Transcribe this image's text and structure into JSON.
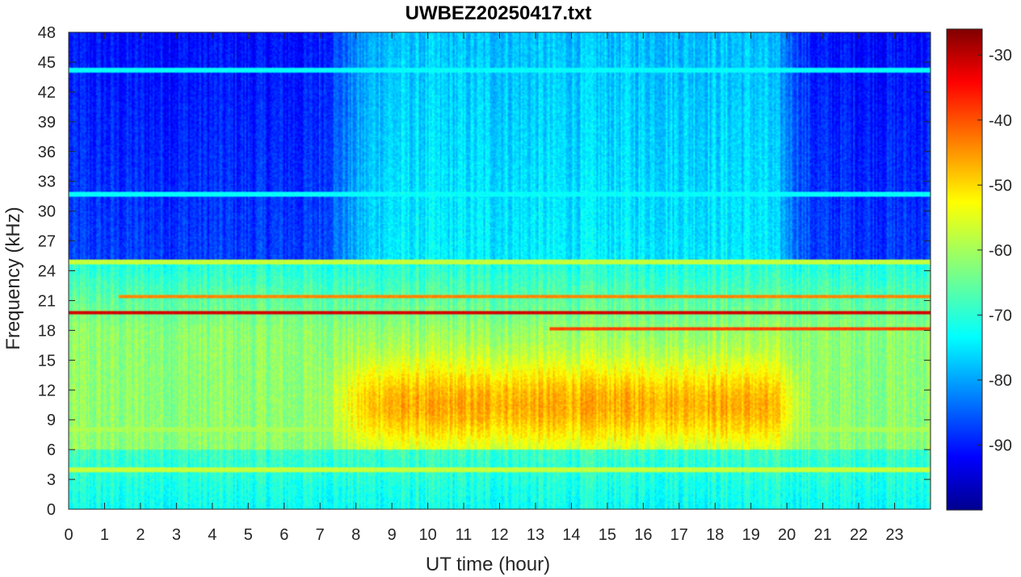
{
  "chart_data": {
    "type": "heatmap",
    "title": "UWBEZ20250417.txt",
    "xlabel": "UT time (hour)",
    "ylabel": "Frequency (kHz)",
    "xlim": [
      0,
      24
    ],
    "ylim": [
      0,
      48
    ],
    "x_ticks": [
      "0",
      "1",
      "2",
      "3",
      "4",
      "5",
      "6",
      "7",
      "8",
      "9",
      "10",
      "11",
      "12",
      "13",
      "14",
      "15",
      "16",
      "17",
      "18",
      "19",
      "20",
      "21",
      "22",
      "23"
    ],
    "y_ticks": [
      "0",
      "3",
      "6",
      "9",
      "12",
      "15",
      "18",
      "21",
      "24",
      "27",
      "30",
      "33",
      "36",
      "39",
      "42",
      "45",
      "48"
    ],
    "colorbar": {
      "colormap": "jet",
      "range": [
        -100,
        -26
      ],
      "ticks": [
        "-90",
        "-80",
        "-70",
        "-60",
        "-50",
        "-40",
        "-30"
      ]
    },
    "approx_levels_db": {
      "background_above_25khz_night": -88,
      "background_above_25khz_day": -75,
      "band_6_to_18khz_night": -62,
      "band_6_to_18khz_day_peak": -48,
      "below_6khz": -68
    },
    "tx_lines": [
      {
        "freq_khz": 19.8,
        "start_h": 0,
        "end_h": 24,
        "level_db": -32
      },
      {
        "freq_khz": 18.2,
        "start_h": 13.4,
        "end_h": 24,
        "level_db": -40
      },
      {
        "freq_khz": 21.4,
        "start_h": 1.4,
        "end_h": 24,
        "level_db": -45
      },
      {
        "freq_khz": 24.9,
        "start_h": 0,
        "end_h": 24,
        "level_db": -58
      },
      {
        "freq_khz": 4.0,
        "start_h": 0,
        "end_h": 24,
        "level_db": -58
      },
      {
        "freq_khz": 8.0,
        "start_h": 0,
        "end_h": 24,
        "level_db": -60
      },
      {
        "freq_khz": 31.7,
        "start_h": 0,
        "end_h": 24,
        "level_db": -72
      },
      {
        "freq_khz": 44.2,
        "start_h": 0,
        "end_h": 24,
        "level_db": -72
      }
    ]
  }
}
